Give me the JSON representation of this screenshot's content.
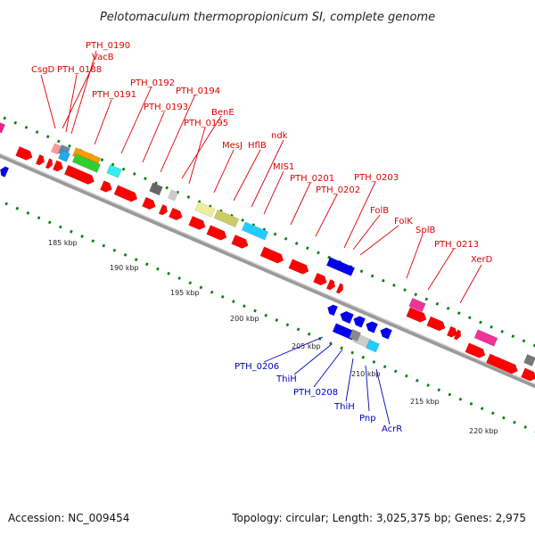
{
  "title": "Pelotomaculum thermopropionicum SI, complete genome",
  "footer": {
    "accession": "Accession: NC_009454",
    "summary": "Topology: circular; Length: 3,025,375 bp; Genes: 2,975"
  },
  "scale_labels": [
    "185 kbp",
    "190 kbp",
    "195 kbp",
    "200 kbp",
    "205 kbp",
    "210 kbp",
    "215 kbp",
    "220 kbp"
  ],
  "top_gene_labels": [
    "CsgD",
    "PTH_0190",
    "VacB",
    "PTH_0188",
    "PTH_0191",
    "PTH_0192",
    "PTH_0194",
    "PTH_0193",
    "BenE",
    "PTH_0195",
    "ndk",
    "MesJ",
    "HflB",
    "MIS1",
    "PTH_0201",
    "PTH_0203",
    "PTH_0202",
    "FolB",
    "FolK",
    "SplB",
    "PTH_0213",
    "XerD"
  ],
  "bottom_gene_labels": [
    "PTH_0206",
    "ThiH",
    "PTH_0208",
    "ThiH",
    "Pnp",
    "AcrR"
  ],
  "colors": {
    "forward": "#ff0000",
    "reverse": "#0000ee",
    "top_label": "#e00000",
    "bottom_label": "#0000c0",
    "ring_dots": "#008000",
    "backbone": "#888888"
  }
}
